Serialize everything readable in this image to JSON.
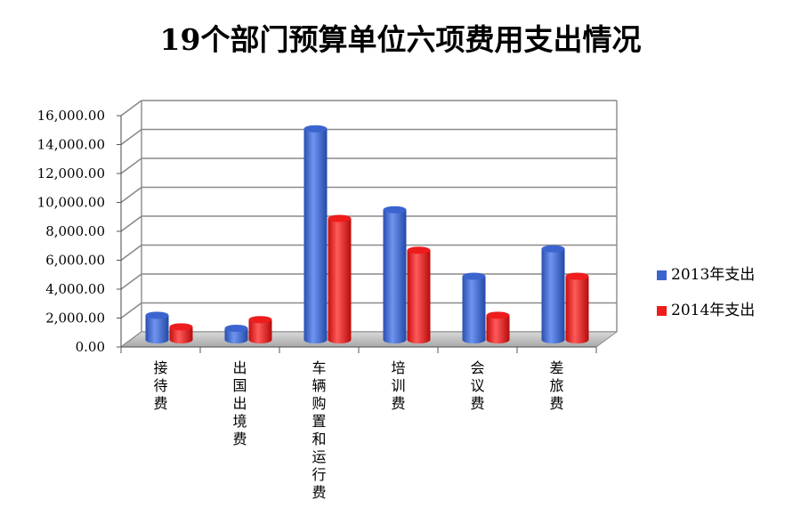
{
  "chart_data": {
    "type": "bar",
    "title": "19个部门预算单位六项费用支出情况",
    "categories": [
      "接待费",
      "出国出境费",
      "车辆购置和运行费",
      "培训费",
      "会议费",
      "差旅费"
    ],
    "series": [
      {
        "name": "2013年支出",
        "values": [
          1700,
          800,
          14600,
          9000,
          4400,
          6300
        ]
      },
      {
        "name": "2014年支出",
        "values": [
          900,
          1400,
          8400,
          6200,
          1700,
          4400
        ]
      }
    ],
    "y_ticks": [
      "0.00",
      "2,000.00",
      "4,000.00",
      "6,000.00",
      "8,000.00",
      "10,000.00",
      "12,000.00",
      "14,000.00",
      "16,000.00"
    ],
    "ylim": [
      0,
      16000
    ],
    "grid": true,
    "legend": "right",
    "colors": {
      "2013年支出": "#3b64cf",
      "2014年支出": "#ee1c1c"
    }
  }
}
